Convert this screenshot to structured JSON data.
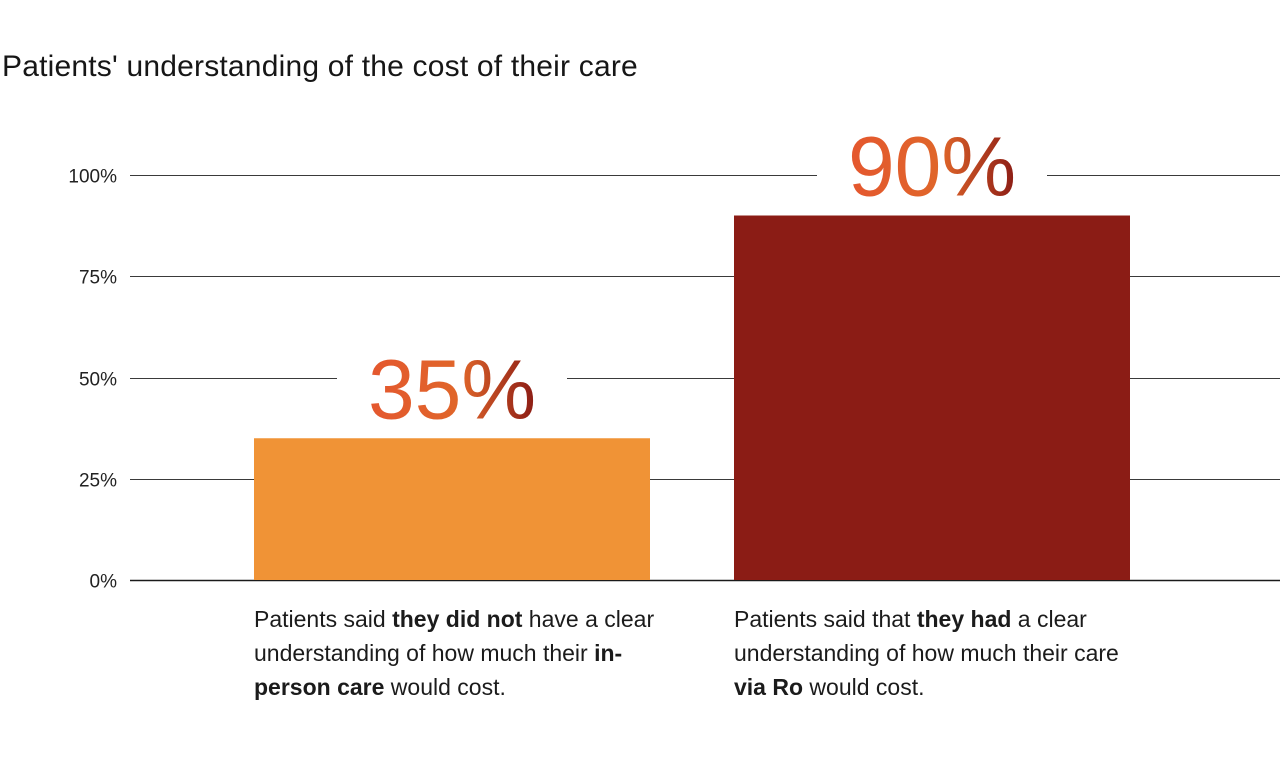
{
  "chart_data": {
    "type": "bar",
    "title": "Patients' understanding of the cost of their care",
    "categories": [
      "In-person care",
      "Care via Ro"
    ],
    "values": [
      35,
      90
    ],
    "value_labels": [
      "35%",
      "90%"
    ],
    "colors": [
      "#F09336",
      "#8B1C15"
    ],
    "label_gradient": [
      "#E4572E",
      "#8B1C15"
    ],
    "ylim": [
      0,
      100
    ],
    "yticks": [
      0,
      25,
      50,
      75,
      100
    ],
    "ytick_labels": [
      "0%",
      "25%",
      "50%",
      "75%",
      "100%"
    ],
    "grid": true,
    "xlabel": "",
    "ylabel": ""
  },
  "captions": [
    {
      "parts": [
        {
          "text": "Patients said ",
          "bold": false
        },
        {
          "text": "they did not",
          "bold": true
        },
        {
          "text": " have a clear understanding of how much their ",
          "bold": false
        },
        {
          "text": "in-person care",
          "bold": true
        },
        {
          "text": " would cost.",
          "bold": false
        }
      ]
    },
    {
      "parts": [
        {
          "text": "Patients said that ",
          "bold": false
        },
        {
          "text": "they had",
          "bold": true
        },
        {
          "text": " a clear understanding of how much their care ",
          "bold": false
        },
        {
          "text": "via Ro",
          "bold": true
        },
        {
          "text": " would cost.",
          "bold": false
        }
      ]
    }
  ]
}
